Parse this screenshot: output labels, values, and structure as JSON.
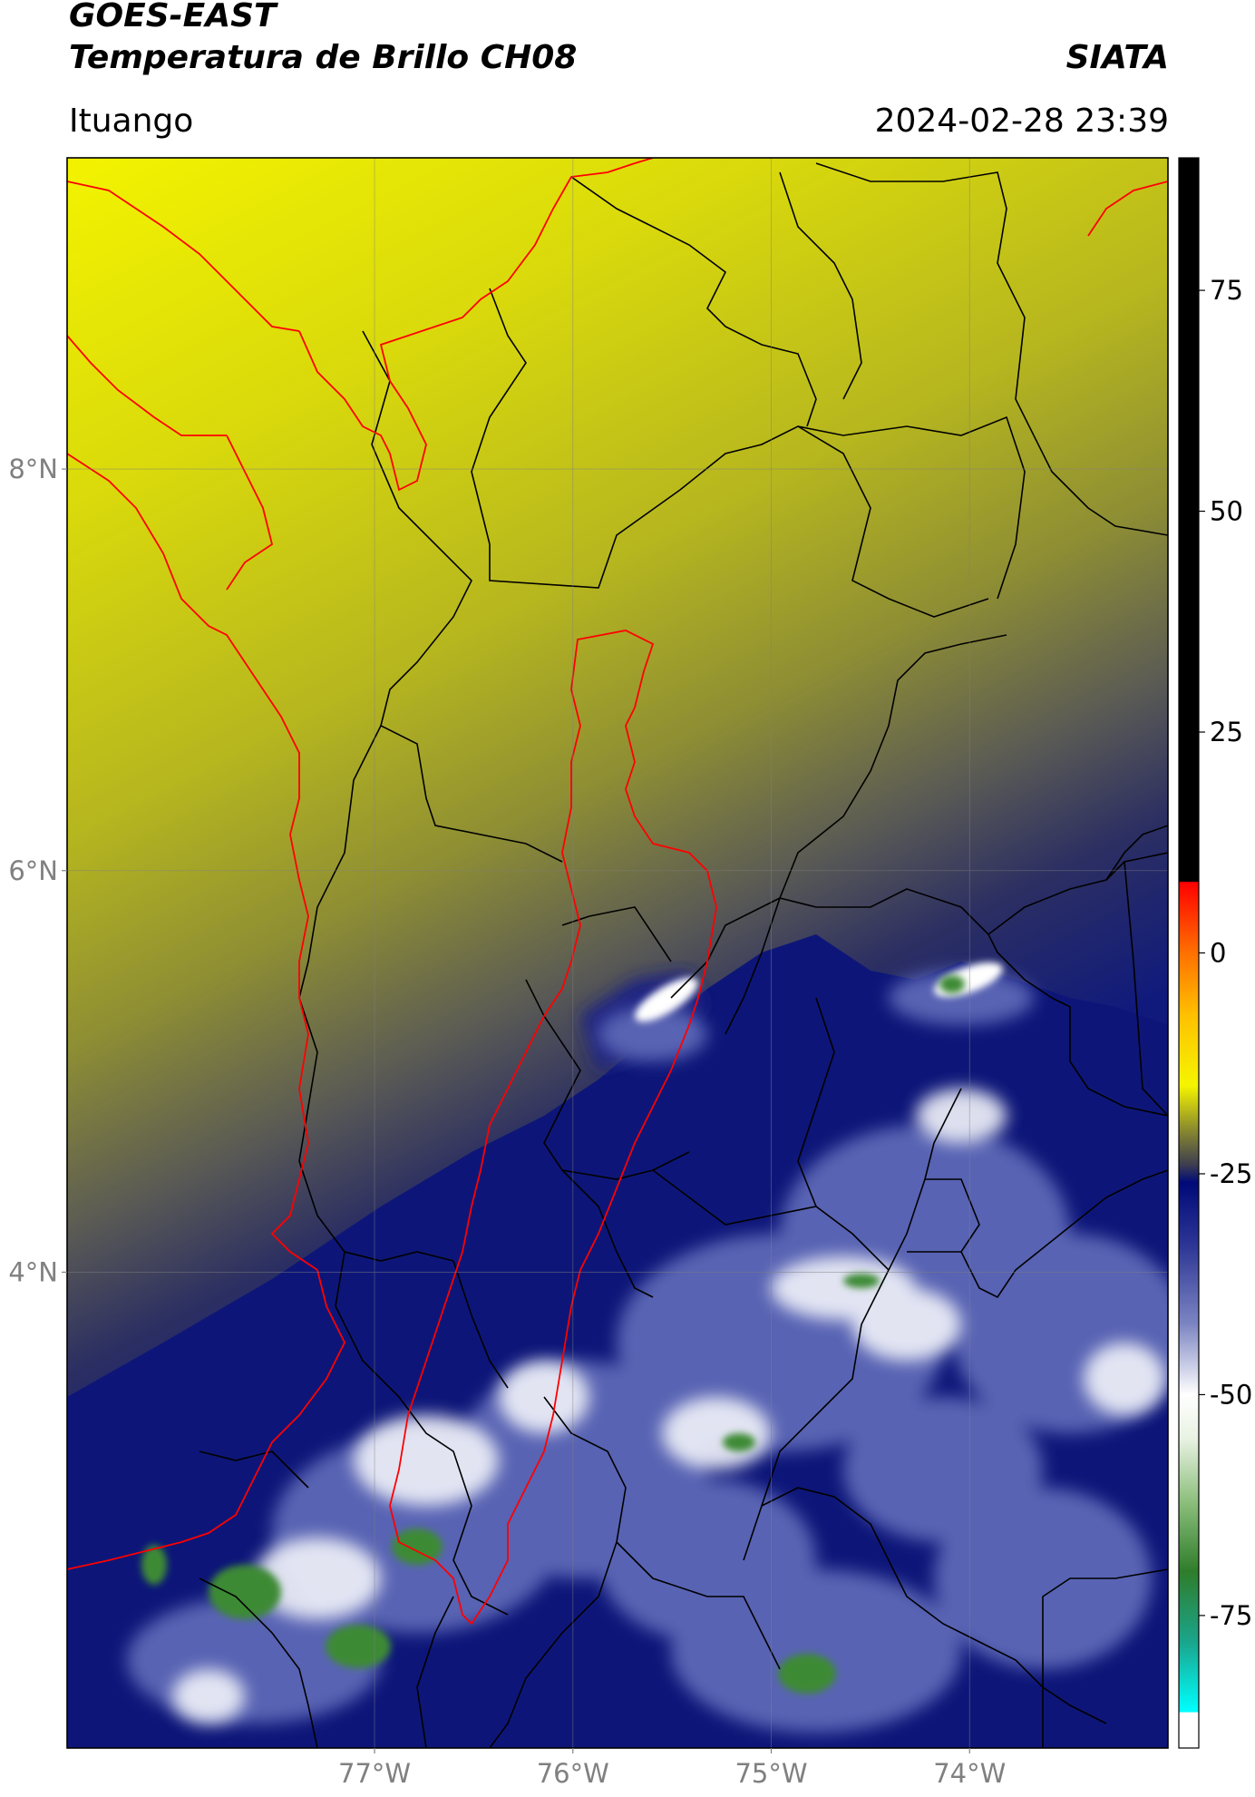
{
  "header": {
    "satellite": "GOES-EAST",
    "product": "Temperatura de Brillo CH08",
    "org": "SIATA",
    "region": "Ituango",
    "datetime": "2024-02-28 23:39"
  },
  "map": {
    "lat_ticks": [
      {
        "value": 8,
        "label": "8°N"
      },
      {
        "value": 6,
        "label": "6°N"
      },
      {
        "value": 4,
        "label": "4°N"
      }
    ],
    "lon_ticks": [
      {
        "value": -77,
        "label": "77°W"
      },
      {
        "value": -76,
        "label": "76°W"
      },
      {
        "value": -75,
        "label": "75°W"
      },
      {
        "value": -74,
        "label": "74°W"
      }
    ],
    "extent": {
      "lon": [
        -78.55,
        -73.0
      ],
      "lat": [
        1.63,
        9.55
      ]
    },
    "colors": {
      "warm_top": "#f2f200",
      "warm_mid": "#b5b521",
      "gray": "#55555e",
      "navy": "#0d1678",
      "blue": "#4a55a8",
      "white": "#f0f2f8",
      "green": "#3e8a34",
      "boundary_black": "#000000",
      "boundary_red": "#ff0000"
    }
  },
  "colorbar": {
    "ticks": [
      {
        "value": 75,
        "label": "75"
      },
      {
        "value": 50,
        "label": "50"
      },
      {
        "value": 25,
        "label": "25"
      },
      {
        "value": 0,
        "label": "0"
      },
      {
        "value": -25,
        "label": "-25"
      },
      {
        "value": -50,
        "label": "-50"
      },
      {
        "value": -75,
        "label": "-75"
      }
    ],
    "range": [
      -90,
      90
    ],
    "stops": [
      {
        "value": -90,
        "color": "#ffffff"
      },
      {
        "value": -86,
        "color": "#ffffff"
      },
      {
        "value": -85.9,
        "color": "#00ffff"
      },
      {
        "value": -78,
        "color": "#1aa58c"
      },
      {
        "value": -70,
        "color": "#2f7d2a"
      },
      {
        "value": -62,
        "color": "#8ec07e"
      },
      {
        "value": -55,
        "color": "#e8f2e2"
      },
      {
        "value": -50,
        "color": "#ffffff"
      },
      {
        "value": -42,
        "color": "#7c85c2"
      },
      {
        "value": -33,
        "color": "#2c3594"
      },
      {
        "value": -26,
        "color": "#000a78"
      },
      {
        "value": -24,
        "color": "#3d3d50"
      },
      {
        "value": -20,
        "color": "#8a8a2e"
      },
      {
        "value": -15,
        "color": "#f5f500"
      },
      {
        "value": -7,
        "color": "#ffc000"
      },
      {
        "value": 0,
        "color": "#ff7000"
      },
      {
        "value": 8,
        "color": "#ff0000"
      },
      {
        "value": 8.1,
        "color": "#000000"
      },
      {
        "value": 90,
        "color": "#000000"
      }
    ]
  }
}
